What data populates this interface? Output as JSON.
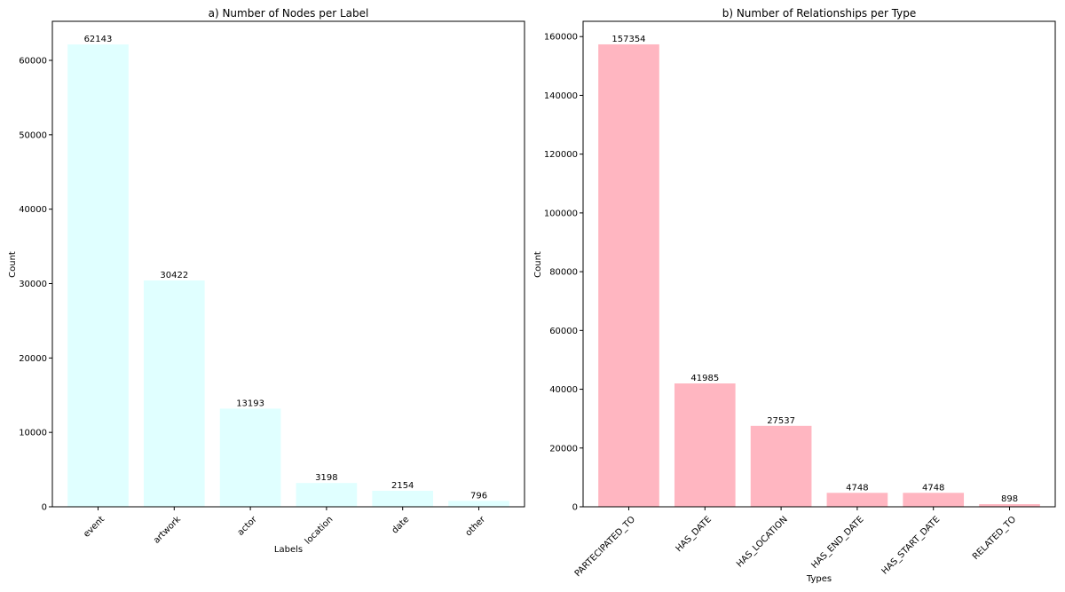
{
  "chart_data": [
    {
      "type": "bar",
      "title": "a) Number of Nodes per Label",
      "xlabel": "Labels",
      "ylabel": "Count",
      "categories": [
        "event",
        "artwork",
        "actor",
        "location",
        "date",
        "other"
      ],
      "values": [
        62143,
        30422,
        13193,
        3198,
        2154,
        796
      ],
      "ylim": [
        0,
        65250
      ],
      "yticks": [
        0,
        10000,
        20000,
        30000,
        40000,
        50000,
        60000
      ],
      "bar_color": "#e0ffff",
      "grid": false
    },
    {
      "type": "bar",
      "title": "b) Number of Relationships per Type",
      "xlabel": "Types",
      "ylabel": "Count",
      "categories": [
        "PARTECIPATED_TO",
        "HAS_DATE",
        "HAS_LOCATION",
        "HAS_END_DATE",
        "HAS_START_DATE",
        "RELATED_TO"
      ],
      "values": [
        157354,
        41985,
        27537,
        4748,
        4748,
        898
      ],
      "ylim": [
        0,
        165200
      ],
      "yticks": [
        0,
        20000,
        40000,
        60000,
        80000,
        100000,
        120000,
        140000,
        160000
      ],
      "bar_color": "#ffb6c1",
      "grid": false
    }
  ]
}
